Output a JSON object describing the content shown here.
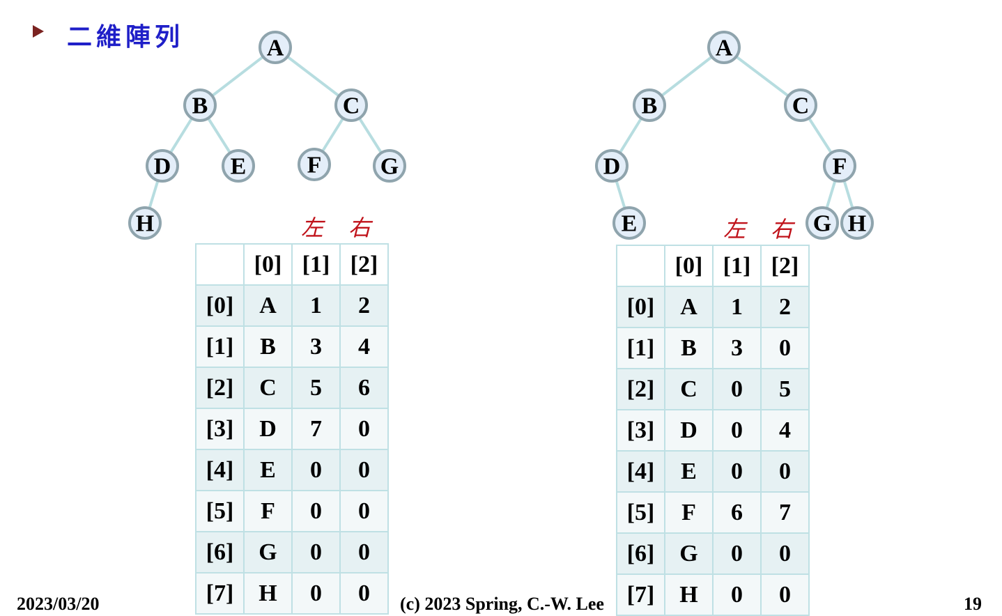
{
  "slide": {
    "title": "二維陣列",
    "left_label": "左",
    "right_label": "右",
    "footer_date": "2023/03/20",
    "footer_center": "(c) 2023 Spring, C.-W. Lee",
    "page_number": "19"
  },
  "trees": [
    {
      "nodes": [
        "A",
        "B",
        "C",
        "D",
        "E",
        "F",
        "G",
        "H"
      ],
      "edges": [
        [
          "A",
          "B"
        ],
        [
          "A",
          "C"
        ],
        [
          "B",
          "D"
        ],
        [
          "B",
          "E"
        ],
        [
          "C",
          "F"
        ],
        [
          "C",
          "G"
        ],
        [
          "D",
          "H"
        ]
      ]
    },
    {
      "nodes": [
        "A",
        "B",
        "C",
        "D",
        "E",
        "F",
        "G",
        "H"
      ],
      "edges": [
        [
          "A",
          "B"
        ],
        [
          "A",
          "C"
        ],
        [
          "B",
          "D"
        ],
        [
          "D",
          "E"
        ],
        [
          "C",
          "F"
        ],
        [
          "F",
          "G"
        ],
        [
          "F",
          "H"
        ]
      ]
    }
  ],
  "tables": [
    {
      "columns": [
        "",
        "[0]",
        "[1]",
        "[2]"
      ],
      "rows": [
        [
          "[0]",
          "A",
          "1",
          "2"
        ],
        [
          "[1]",
          "B",
          "3",
          "4"
        ],
        [
          "[2]",
          "C",
          "5",
          "6"
        ],
        [
          "[3]",
          "D",
          "7",
          "0"
        ],
        [
          "[4]",
          "E",
          "0",
          "0"
        ],
        [
          "[5]",
          "F",
          "0",
          "0"
        ],
        [
          "[6]",
          "G",
          "0",
          "0"
        ],
        [
          "[7]",
          "H",
          "0",
          "0"
        ]
      ]
    },
    {
      "columns": [
        "",
        "[0]",
        "[1]",
        "[2]"
      ],
      "rows": [
        [
          "[0]",
          "A",
          "1",
          "2"
        ],
        [
          "[1]",
          "B",
          "3",
          "0"
        ],
        [
          "[2]",
          "C",
          "0",
          "5"
        ],
        [
          "[3]",
          "D",
          "0",
          "4"
        ],
        [
          "[4]",
          "E",
          "0",
          "0"
        ],
        [
          "[5]",
          "F",
          "6",
          "7"
        ],
        [
          "[6]",
          "G",
          "0",
          "0"
        ],
        [
          "[7]",
          "H",
          "0",
          "0"
        ]
      ]
    }
  ]
}
